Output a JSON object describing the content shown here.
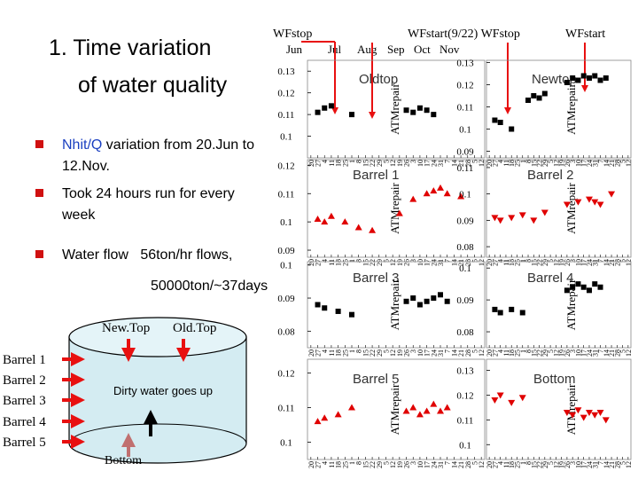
{
  "slide_title": [
    "1. Time variation",
    "of  water quality"
  ],
  "bullets": [
    {
      "highlight": "Nhit/Q",
      "lines": [
        "variation from 20.Jun to",
        "12.Nov."
      ]
    },
    {
      "lines": [
        "Took 24 hours run for every",
        "week"
      ]
    },
    {
      "lines": [
        "Water flow   56ton/hr flows,"
      ]
    }
  ],
  "flow_total": "50000ton/~37days",
  "annotations": {
    "wf_stop_left": "WFstop",
    "wf_start_stop": "WFstart(9/22) WFstop",
    "wf_start": "WFstart",
    "months": [
      "Jun",
      "Jul",
      "Aug",
      "Sep",
      "Oct",
      "Nov"
    ],
    "repair": "ATMrepair"
  },
  "diagram": {
    "tops": [
      "New.Top",
      "Old.Top"
    ],
    "barrels": [
      "Barrel 1",
      "Barrel 2",
      "Barrel 3",
      "Barrel 4",
      "Barrel 5"
    ],
    "flow_note": "Dirty water goes up",
    "bottom": "Bottom"
  },
  "chart_data": [
    {
      "type": "scatter",
      "title": "Oldtop",
      "marker": "square",
      "color": "#000000",
      "categories": [
        "20",
        "27",
        "4",
        "11",
        "18",
        "25",
        "1",
        "8",
        "15",
        "22",
        "29",
        "5",
        "12",
        "19",
        "26",
        "3",
        "10",
        "17",
        "24",
        "31",
        "7",
        "14",
        "21",
        "28",
        "5",
        "12"
      ],
      "values": [
        null,
        0.111,
        0.113,
        0.114,
        null,
        null,
        0.11,
        null,
        null,
        null,
        null,
        null,
        null,
        null,
        0.112,
        0.111,
        0.113,
        0.112,
        0.11,
        null,
        null,
        null,
        null,
        null,
        null,
        null
      ],
      "ylim": [
        0.09,
        0.135
      ],
      "yticks": [
        0.1,
        0.11,
        0.12,
        0.13
      ]
    },
    {
      "type": "scatter",
      "title": "Newtop",
      "marker": "square",
      "color": "#000000",
      "categories": [
        "20",
        "27",
        "4",
        "11",
        "18",
        "25",
        "1",
        "8",
        "15",
        "22",
        "29",
        "5",
        "12",
        "19",
        "26",
        "3",
        "10",
        "17",
        "24",
        "31",
        "7",
        "14",
        "21",
        "28",
        "5",
        "12"
      ],
      "values": [
        null,
        0.104,
        0.103,
        null,
        0.1,
        null,
        null,
        0.113,
        0.115,
        0.114,
        0.116,
        null,
        null,
        null,
        0.121,
        0.123,
        0.122,
        0.124,
        0.123,
        0.124,
        0.122,
        0.123,
        null,
        null,
        null,
        null
      ],
      "ylim": [
        0.087,
        0.131
      ],
      "yticks": [
        0.09,
        0.1,
        0.11,
        0.12,
        0.13
      ]
    },
    {
      "type": "scatter",
      "title": "Barrel 1",
      "marker": "triangle-up",
      "color": "#e00000",
      "categories": [
        "20",
        "27",
        "4",
        "11",
        "18",
        "25",
        "1",
        "8",
        "15",
        "22",
        "29",
        "5",
        "12",
        "19",
        "26",
        "3",
        "10",
        "17",
        "24",
        "31",
        "7",
        "14",
        "21",
        "28",
        "5",
        "12"
      ],
      "values": [
        null,
        0.101,
        0.1,
        0.102,
        null,
        0.1,
        null,
        0.098,
        null,
        0.097,
        null,
        null,
        null,
        0.103,
        null,
        0.108,
        null,
        0.11,
        0.111,
        0.112,
        0.11,
        null,
        0.109,
        null,
        null,
        null
      ],
      "ylim": [
        0.0875,
        0.122
      ],
      "yticks": [
        0.09,
        0.1,
        0.11,
        0.12
      ]
    },
    {
      "type": "scatter",
      "title": "Barrel 2",
      "marker": "triangle-down",
      "color": "#e00000",
      "categories": [
        "20",
        "27",
        "4",
        "11",
        "18",
        "25",
        "1",
        "8",
        "15",
        "22",
        "29",
        "5",
        "12",
        "19",
        "26",
        "3",
        "10",
        "17",
        "24",
        "31",
        "7",
        "14",
        "21",
        "28",
        "5",
        "12"
      ],
      "values": [
        null,
        0.091,
        0.09,
        null,
        0.091,
        null,
        0.092,
        null,
        0.09,
        null,
        0.093,
        null,
        null,
        null,
        0.096,
        null,
        0.097,
        null,
        0.098,
        0.097,
        0.096,
        null,
        0.1,
        null,
        null,
        null
      ],
      "ylim": [
        0.076,
        0.113
      ],
      "yticks": [
        0.08,
        0.09,
        0.1,
        0.11
      ]
    },
    {
      "type": "scatter",
      "title": "Barrel 3",
      "marker": "square",
      "color": "#000000",
      "categories": [
        "20",
        "27",
        "4",
        "11",
        "18",
        "25",
        "1",
        "8",
        "15",
        "22",
        "29",
        "5",
        "12",
        "19",
        "26",
        "3",
        "10",
        "17",
        "24",
        "31",
        "7",
        "14",
        "21",
        "28",
        "5",
        "12"
      ],
      "values": [
        null,
        0.088,
        0.087,
        null,
        0.086,
        null,
        0.085,
        null,
        null,
        null,
        null,
        null,
        null,
        null,
        0.089,
        0.09,
        0.088,
        0.089,
        0.09,
        0.091,
        0.089,
        null,
        null,
        null,
        null,
        null
      ],
      "ylim": [
        0.075,
        0.101
      ],
      "yticks": [
        0.08,
        0.09,
        0.1
      ]
    },
    {
      "type": "scatter",
      "title": "Barrel 4",
      "marker": "square",
      "color": "#000000",
      "categories": [
        "20",
        "27",
        "4",
        "11",
        "18",
        "25",
        "1",
        "8",
        "15",
        "22",
        "29",
        "5",
        "12",
        "19",
        "26",
        "3",
        "10",
        "17",
        "24",
        "31",
        "7",
        "14",
        "21",
        "28",
        "5",
        "12"
      ],
      "values": [
        null,
        0.087,
        0.086,
        null,
        0.087,
        null,
        0.086,
        null,
        null,
        null,
        null,
        null,
        null,
        null,
        0.093,
        0.094,
        0.095,
        0.094,
        0.093,
        0.095,
        0.094,
        null,
        null,
        null,
        null,
        null
      ],
      "ylim": [
        0.075,
        0.102
      ],
      "yticks": [
        0.08,
        0.09,
        0.1
      ]
    },
    {
      "type": "scatter",
      "title": "Barrel 5",
      "marker": "triangle-up",
      "color": "#e00000",
      "categories": [
        "20",
        "27",
        "4",
        "11",
        "18",
        "25",
        "1",
        "8",
        "15",
        "22",
        "29",
        "5",
        "12",
        "19",
        "26",
        "3",
        "10",
        "17",
        "24",
        "31",
        "7",
        "14",
        "21",
        "28",
        "5",
        "12"
      ],
      "values": [
        null,
        0.106,
        0.107,
        null,
        0.108,
        null,
        0.11,
        null,
        null,
        null,
        null,
        null,
        null,
        null,
        0.109,
        0.11,
        0.108,
        0.109,
        0.111,
        0.109,
        0.11,
        null,
        null,
        null,
        null,
        null
      ],
      "ylim": [
        0.095,
        0.124
      ],
      "yticks": [
        0.1,
        0.11,
        0.12
      ]
    },
    {
      "type": "scatter",
      "title": "Bottom",
      "marker": "triangle-down",
      "color": "#e00000",
      "categories": [
        "20",
        "27",
        "4",
        "11",
        "18",
        "25",
        "1",
        "8",
        "15",
        "22",
        "29",
        "5",
        "12",
        "19",
        "26",
        "3",
        "10",
        "17",
        "24",
        "31",
        "7",
        "14",
        "21",
        "28",
        "5",
        "12"
      ],
      "values": [
        null,
        0.118,
        0.12,
        null,
        0.117,
        null,
        0.119,
        null,
        null,
        null,
        null,
        null,
        null,
        null,
        0.113,
        0.112,
        0.114,
        0.111,
        0.113,
        0.112,
        0.113,
        0.11,
        null,
        null,
        null,
        null
      ],
      "ylim": [
        0.094,
        0.1345
      ],
      "yticks": [
        0.1,
        0.11,
        0.12,
        0.13
      ]
    }
  ]
}
